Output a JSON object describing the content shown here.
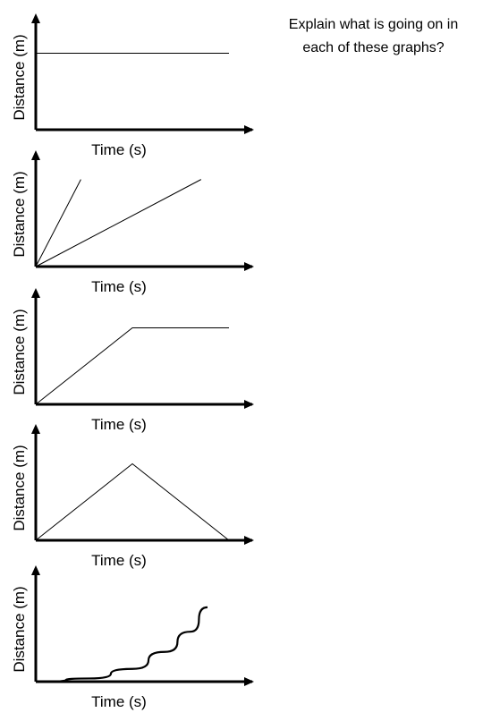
{
  "prompt": {
    "line1": "Explain what is going on in",
    "line2": "each of these graphs?"
  },
  "chart_data": [
    {
      "type": "line",
      "xlabel": "Time (s)",
      "ylabel": "Distance (m)",
      "xlim": [
        0,
        1
      ],
      "ylim": [
        0,
        1
      ],
      "series": [
        {
          "points": [
            [
              0,
              0.72
            ],
            [
              0.9,
              0.72
            ]
          ]
        }
      ]
    },
    {
      "type": "line",
      "xlabel": "Time (s)",
      "ylabel": "Distance (m)",
      "xlim": [
        0,
        1
      ],
      "ylim": [
        0,
        1
      ],
      "series": [
        {
          "points": [
            [
              0,
              0
            ],
            [
              0.21,
              0.82
            ]
          ]
        },
        {
          "points": [
            [
              0,
              0
            ],
            [
              0.77,
              0.82
            ]
          ]
        }
      ]
    },
    {
      "type": "line",
      "xlabel": "Time (s)",
      "ylabel": "Distance (m)",
      "xlim": [
        0,
        1
      ],
      "ylim": [
        0,
        1
      ],
      "series": [
        {
          "points": [
            [
              0,
              0
            ],
            [
              0.45,
              0.72
            ],
            [
              0.9,
              0.72
            ]
          ]
        }
      ]
    },
    {
      "type": "line",
      "xlabel": "Time (s)",
      "ylabel": "Distance (m)",
      "xlim": [
        0,
        1
      ],
      "ylim": [
        0,
        1
      ],
      "series": [
        {
          "points": [
            [
              0,
              0
            ],
            [
              0.45,
              0.72
            ],
            [
              0.9,
              0
            ]
          ]
        }
      ]
    },
    {
      "type": "line",
      "xlabel": "Time (s)",
      "ylabel": "Distance (m)",
      "xlim": [
        0,
        1
      ],
      "ylim": [
        0,
        1
      ],
      "series": [
        {
          "curve": "exponential",
          "points": [
            [
              0.03,
              0
            ],
            [
              0.25,
              0.03
            ],
            [
              0.45,
              0.12
            ],
            [
              0.6,
              0.28
            ],
            [
              0.72,
              0.47
            ],
            [
              0.8,
              0.7
            ]
          ]
        }
      ]
    }
  ]
}
